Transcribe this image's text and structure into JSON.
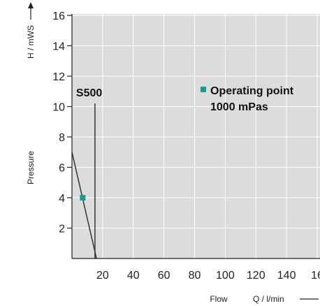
{
  "chart_data": {
    "type": "line",
    "x_axis": {
      "name": "Flow",
      "unit": "Q / l/min",
      "ticks": [
        20,
        40,
        60,
        80,
        100,
        120,
        140,
        "16"
      ],
      "range": [
        0,
        160
      ]
    },
    "y_axis": {
      "name": "Pressure",
      "unit": "H / mWS",
      "ticks": [
        2,
        4,
        6,
        8,
        10,
        12,
        14,
        16
      ],
      "range": [
        0,
        16
      ]
    },
    "grid": true,
    "series": [
      {
        "name": "",
        "points": [
          {
            "x": 0,
            "y": 7.0
          },
          {
            "x": 16,
            "y": 0
          }
        ],
        "color": "#333333"
      },
      {
        "name": "S500",
        "points": [
          {
            "x": 15,
            "y": 10.2
          },
          {
            "x": 15,
            "y": 0
          }
        ],
        "color": "#333333"
      }
    ],
    "operating_point": {
      "x": 7,
      "y": 4,
      "color": "#1a9b8f",
      "legend_line1": "Operating point",
      "legend_line2": "1000 mPas"
    },
    "curve_label": "S500",
    "colors": {
      "plot_bg": "#dcdcdc",
      "grid": "#ffffff",
      "axis": "#222222"
    }
  }
}
